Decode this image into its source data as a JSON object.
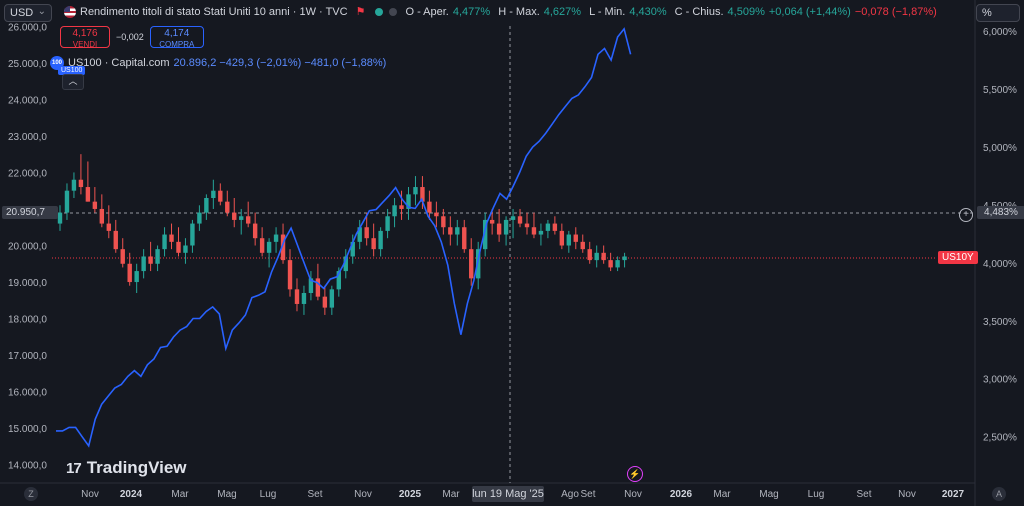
{
  "toolbar": {
    "currency": "USD",
    "scale_mode": "%"
  },
  "legend": {
    "title": "Rendimento titoli di stato Stati Uniti 10 anni · 1W · TVC",
    "open_label": "O - Aper.",
    "open_value": "4,477%",
    "high_label": "H - Max.",
    "high_value": "4,627%",
    "low_label": "L - Min.",
    "low_value": "4,430%",
    "close_label": "C - Chius.",
    "close_value": "4,509%",
    "change": "+0,064 (+1,44%)",
    "change2": "−0,078 (−1,87%)"
  },
  "trade": {
    "sell_price": "4,176",
    "sell_label": "VENDI",
    "spread": "−0,002",
    "buy_price": "4,174",
    "buy_label": "COMPRA"
  },
  "compare": {
    "badge": "100",
    "name": "US100 · Capital.com",
    "values": "20.896,2  −429,3 (−2,01%)  −481,0 (−1,88%)",
    "hidden_tag": "US100"
  },
  "collapse_icon": "chevron-up",
  "logo_text": "TradingView",
  "crosshair_date": "lun 19 Mag '25",
  "left_crosshair_value": "20.950,7",
  "right_crosshair_value": "4,483%",
  "us10y_tag": "US10Y",
  "corner_left": "Z",
  "corner_right": "A",
  "colors": {
    "up": "#26a69a",
    "down": "#ef5350",
    "line": "#2962ff",
    "background": "#151820",
    "us10y_tag": "#f23645"
  },
  "chart_data": {
    "type": "line",
    "left_axis": {
      "ticks": [
        "26.000,0",
        "25.000,0",
        "24.000,0",
        "23.000,0",
        "22.000,0",
        "20.000,0",
        "19.000,0",
        "18.000,0",
        "17.000,0",
        "16.000,0",
        "15.000,0",
        "14.000,0"
      ],
      "range": [
        13500,
        26500
      ]
    },
    "right_axis": {
      "ticks": [
        "6,000%",
        "5,500%",
        "5,000%",
        "4,500%",
        "4,000%",
        "3,500%",
        "3,000%",
        "2,500%"
      ],
      "range": [
        2.1,
        6.2
      ]
    },
    "x_ticks": [
      "Nov",
      "2024",
      "Mar",
      "Mag",
      "Lug",
      "Set",
      "Nov",
      "2025",
      "Mar",
      "Mag",
      "Lug",
      "Ago",
      "Set",
      "Nov",
      "2026",
      "Mar",
      "Mag",
      "Lug",
      "Set",
      "Nov",
      "2027"
    ],
    "series": [
      {
        "name": "US100 · Capital.com",
        "kind": "candles",
        "candles": [
          [
            20600,
            21100,
            20400,
            20900
          ],
          [
            20900,
            21700,
            20700,
            21500
          ],
          [
            21500,
            22000,
            21300,
            21800
          ],
          [
            21800,
            22500,
            21400,
            21600
          ],
          [
            21600,
            22300,
            21200,
            21200
          ],
          [
            21200,
            21600,
            20900,
            21000
          ],
          [
            21000,
            21400,
            20500,
            20600
          ],
          [
            20600,
            21100,
            20200,
            20400
          ],
          [
            20400,
            20700,
            19800,
            19900
          ],
          [
            19900,
            20200,
            19400,
            19500
          ],
          [
            19500,
            19800,
            18900,
            19000
          ],
          [
            19000,
            19500,
            18700,
            19300
          ],
          [
            19300,
            19900,
            19100,
            19700
          ],
          [
            19700,
            20100,
            19300,
            19500
          ],
          [
            19500,
            20000,
            19300,
            19900
          ],
          [
            19900,
            20500,
            19700,
            20300
          ],
          [
            20300,
            20600,
            19900,
            20100
          ],
          [
            20100,
            20500,
            19700,
            19800
          ],
          [
            19800,
            20200,
            19500,
            20000
          ],
          [
            20000,
            20700,
            19800,
            20600
          ],
          [
            20600,
            21100,
            20400,
            20900
          ],
          [
            20900,
            21400,
            20700,
            21300
          ],
          [
            21300,
            21800,
            21000,
            21500
          ],
          [
            21500,
            21700,
            21100,
            21200
          ],
          [
            21200,
            21500,
            20800,
            20900
          ],
          [
            20900,
            21300,
            20500,
            20700
          ],
          [
            20700,
            21000,
            20300,
            20800
          ],
          [
            20800,
            21200,
            20500,
            20600
          ],
          [
            20600,
            20900,
            20000,
            20200
          ],
          [
            20200,
            20500,
            19700,
            19800
          ],
          [
            19800,
            20200,
            19400,
            20100
          ],
          [
            20100,
            20500,
            19800,
            20300
          ],
          [
            20300,
            20600,
            19500,
            19600
          ],
          [
            19600,
            19900,
            18600,
            18800
          ],
          [
            18800,
            19100,
            18200,
            18400
          ],
          [
            18400,
            18900,
            18100,
            18700
          ],
          [
            18700,
            19300,
            18500,
            19100
          ],
          [
            19100,
            19500,
            18500,
            18600
          ],
          [
            18600,
            18900,
            18100,
            18300
          ],
          [
            18300,
            18900,
            18100,
            18800
          ],
          [
            18800,
            19400,
            18600,
            19300
          ],
          [
            19300,
            19900,
            19100,
            19700
          ],
          [
            19700,
            20300,
            19500,
            20100
          ],
          [
            20100,
            20700,
            19900,
            20500
          ],
          [
            20500,
            20900,
            20000,
            20200
          ],
          [
            20200,
            20600,
            19700,
            19900
          ],
          [
            19900,
            20500,
            19700,
            20400
          ],
          [
            20400,
            21000,
            20200,
            20800
          ],
          [
            20800,
            21300,
            20500,
            21100
          ],
          [
            21100,
            21500,
            20700,
            21000
          ],
          [
            21000,
            21600,
            20700,
            21400
          ],
          [
            21400,
            21900,
            21100,
            21600
          ],
          [
            21600,
            21900,
            21000,
            21200
          ],
          [
            21200,
            21500,
            20700,
            20900
          ],
          [
            20900,
            21200,
            20500,
            20800
          ],
          [
            20800,
            21000,
            20300,
            20500
          ],
          [
            20500,
            20800,
            20000,
            20300
          ],
          [
            20300,
            20700,
            20000,
            20500
          ],
          [
            20500,
            20700,
            19800,
            19900
          ],
          [
            19900,
            20200,
            18900,
            19100
          ],
          [
            19100,
            20100,
            18800,
            19900
          ],
          [
            19900,
            20900,
            19700,
            20700
          ],
          [
            20700,
            21000,
            20300,
            20600
          ],
          [
            20600,
            21000,
            20100,
            20300
          ],
          [
            20300,
            20800,
            20000,
            20700
          ],
          [
            20700,
            21000,
            20200,
            20800
          ],
          [
            20800,
            21000,
            20500,
            20600
          ],
          [
            20600,
            20900,
            20300,
            20500
          ],
          [
            20500,
            20900,
            20200,
            20300
          ],
          [
            20300,
            20600,
            20000,
            20400
          ],
          [
            20400,
            20700,
            20200,
            20600
          ],
          [
            20600,
            20800,
            20300,
            20400
          ],
          [
            20400,
            20600,
            19900,
            20000
          ],
          [
            20000,
            20400,
            19800,
            20300
          ],
          [
            20300,
            20500,
            19900,
            20100
          ],
          [
            20100,
            20300,
            19800,
            19900
          ],
          [
            19900,
            20100,
            19500,
            19600
          ],
          [
            19600,
            20000,
            19400,
            19800
          ],
          [
            19800,
            20000,
            19500,
            19600
          ],
          [
            19600,
            19800,
            19300,
            19400
          ],
          [
            19400,
            19700,
            19300,
            19600
          ],
          [
            19600,
            19800,
            19400,
            19700
          ]
        ]
      },
      {
        "name": "Rendimento titoli di stato Stati Uniti 10 anni",
        "kind": "line",
        "values": [
          2.55,
          2.55,
          2.58,
          2.58,
          2.5,
          2.42,
          2.65,
          2.78,
          2.85,
          2.92,
          2.95,
          3.02,
          3.07,
          3.02,
          3.12,
          3.17,
          3.27,
          3.28,
          3.36,
          3.42,
          3.45,
          3.52,
          3.52,
          3.58,
          3.62,
          3.56,
          3.26,
          3.42,
          3.48,
          3.55,
          3.7,
          3.72,
          3.75,
          3.92,
          4.05,
          4.2,
          4.3,
          4.15,
          4.0,
          3.85,
          3.83,
          3.78,
          3.86,
          3.88,
          3.98,
          4.12,
          4.25,
          4.35,
          4.45,
          4.46,
          4.52,
          4.58,
          4.65,
          4.55,
          4.48,
          4.47,
          4.55,
          4.4,
          4.32,
          4.18,
          3.98,
          3.65,
          3.38,
          3.65,
          3.85,
          4.12,
          4.35,
          4.48,
          4.6,
          4.55,
          4.66,
          4.78,
          4.92,
          5.0,
          5.05,
          5.12,
          5.2,
          5.28,
          5.35,
          5.42,
          5.45,
          5.52,
          5.6,
          5.8,
          5.85,
          5.75,
          5.95,
          6.02,
          5.8
        ]
      }
    ]
  }
}
